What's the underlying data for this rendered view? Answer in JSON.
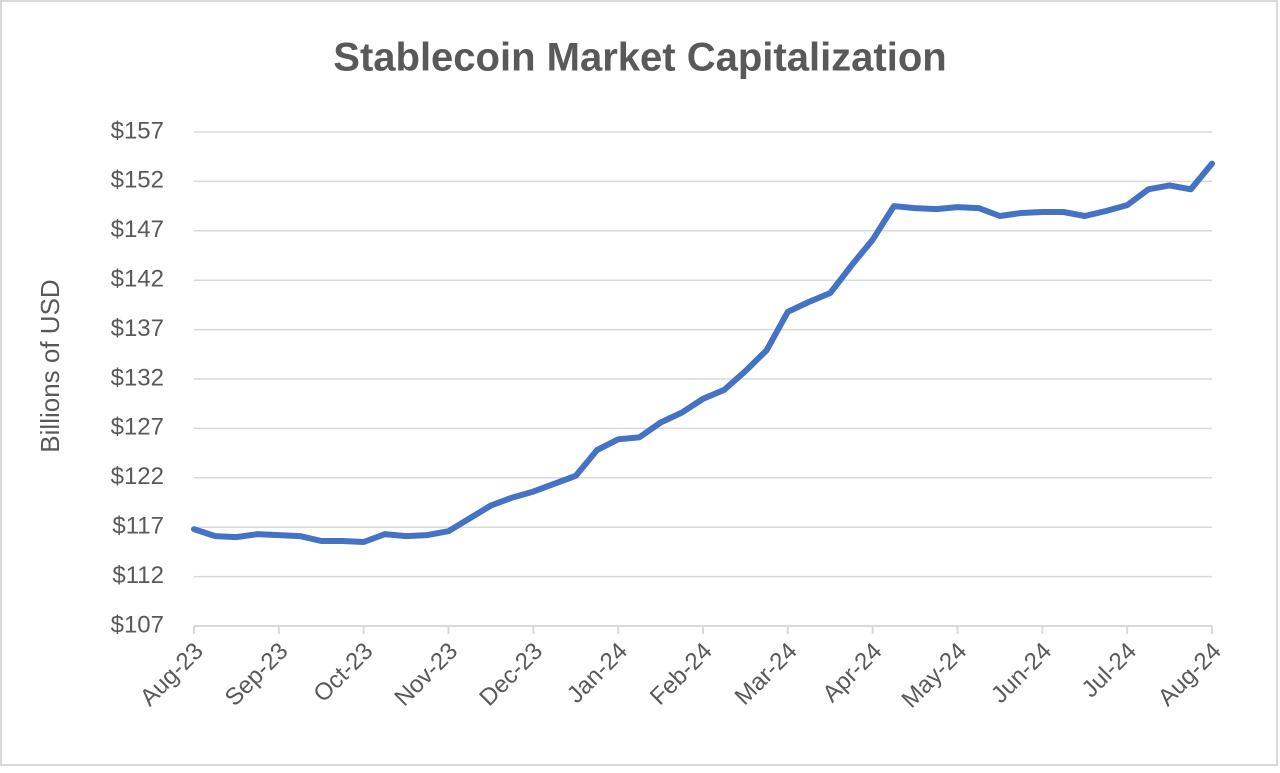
{
  "chart_data": {
    "type": "line",
    "title": "Stablecoin Market Capitalization",
    "y_label": "Billions of USD",
    "categories": [
      "Aug-23",
      null,
      null,
      null,
      "Sep-23",
      null,
      null,
      null,
      "Oct-23",
      null,
      null,
      null,
      "Nov-23",
      null,
      null,
      null,
      "Dec-23",
      null,
      null,
      null,
      "Jan-24",
      null,
      null,
      null,
      "Feb-24",
      null,
      null,
      null,
      "Mar-24",
      null,
      null,
      null,
      "Apr-24",
      null,
      null,
      null,
      "May-24",
      null,
      null,
      null,
      "Jun-24",
      null,
      null,
      null,
      "Jul-24",
      null,
      null,
      null,
      "Aug-24"
    ],
    "values": [
      116.8,
      116.1,
      116.0,
      116.3,
      116.2,
      116.1,
      115.6,
      115.6,
      115.5,
      116.3,
      116.1,
      116.2,
      116.6,
      117.9,
      119.2,
      120.0,
      120.6,
      121.4,
      122.2,
      124.8,
      125.9,
      126.1,
      127.6,
      128.6,
      130.0,
      130.9,
      132.8,
      134.9,
      138.8,
      139.8,
      140.7,
      143.5,
      146.1,
      149.5,
      149.3,
      149.2,
      149.4,
      149.3,
      148.5,
      148.8,
      148.9,
      148.9,
      148.5,
      149.0,
      149.6,
      151.2,
      151.6,
      151.2,
      153.8
    ],
    "color": "#4472c4",
    "ylim": [
      107,
      157
    ],
    "yticks": [
      {
        "value": 107,
        "label": "$107"
      },
      {
        "value": 112,
        "label": "$112"
      },
      {
        "value": 117,
        "label": "$117"
      },
      {
        "value": 122,
        "label": "$122"
      },
      {
        "value": 127,
        "label": "$127"
      },
      {
        "value": 132,
        "label": "$132"
      },
      {
        "value": 137,
        "label": "$137"
      },
      {
        "value": 142,
        "label": "$142"
      },
      {
        "value": 147,
        "label": "$147"
      },
      {
        "value": 152,
        "label": "$152"
      },
      {
        "value": 157,
        "label": "$157"
      }
    ],
    "grid": true
  }
}
